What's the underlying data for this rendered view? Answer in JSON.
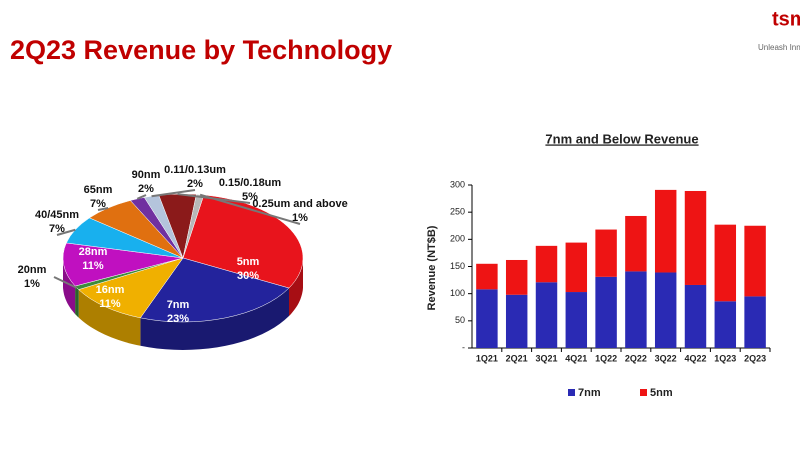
{
  "header": {
    "title": "2Q23 Revenue by Technology",
    "logo": "tsm",
    "tagline": "Unleash Inn"
  },
  "chart_data": [
    {
      "type": "pie",
      "categories": [
        "5nm",
        "7nm",
        "16nm",
        "20nm",
        "28nm",
        "40/45nm",
        "65nm",
        "90nm",
        "0.11/0.13um",
        "0.15/0.18um",
        "0.25um and above"
      ],
      "values": [
        30,
        23,
        11,
        1,
        11,
        7,
        7,
        2,
        2,
        5,
        1
      ],
      "value_labels": [
        "30%",
        "23%",
        "11%",
        "1%",
        "11%",
        "7%",
        "7%",
        "2%",
        "2%",
        "5%",
        "1%"
      ],
      "colors": [
        "#e8141c",
        "#23239c",
        "#f0b000",
        "#3c8c3c",
        "#c010c0",
        "#18b0ee",
        "#e07010",
        "#7030a0",
        "#b4c4dc",
        "#8b1a1a",
        "#b8b8b8"
      ]
    },
    {
      "type": "bar",
      "title": "7nm and Below Revenue",
      "y_label": "Revenue (NT$B)",
      "categories": [
        "1Q21",
        "2Q21",
        "3Q21",
        "4Q21",
        "1Q22",
        "2Q22",
        "3Q22",
        "4Q22",
        "1Q23",
        "2Q23"
      ],
      "series": [
        {
          "name": "7nm",
          "color": "#2a2ab4",
          "values": [
            108,
            98,
            121,
            103,
            131,
            141,
            139,
            116,
            86,
            95
          ]
        },
        {
          "name": "5nm",
          "color": "#ee1414",
          "values": [
            47,
            64,
            67,
            91,
            87,
            102,
            152,
            173,
            141,
            130
          ]
        }
      ],
      "stacked": true,
      "ylim": [
        0,
        300
      ],
      "yticks": [
        {
          "value": 0,
          "label": "-"
        },
        50,
        100,
        150,
        200,
        250,
        300
      ]
    }
  ]
}
